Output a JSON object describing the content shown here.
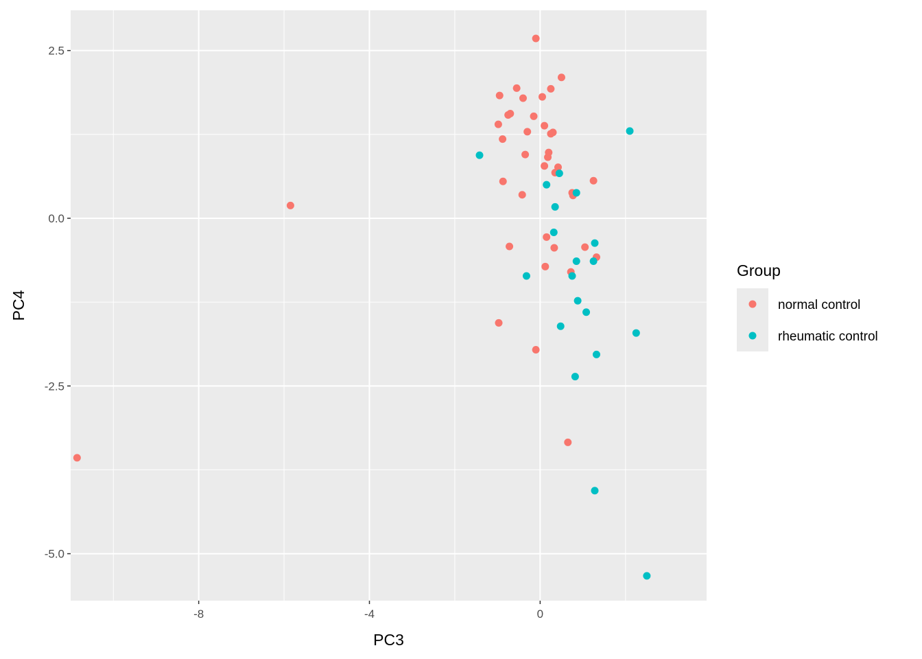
{
  "chart_data": {
    "type": "scatter",
    "xlabel": "PC3",
    "ylabel": "PC4",
    "xlim": [
      -11.0,
      3.9
    ],
    "ylim": [
      -5.7,
      3.1
    ],
    "x_ticks": [
      -8,
      -4,
      0
    ],
    "y_ticks": [
      2.5,
      0.0,
      -2.5,
      -5.0
    ],
    "x_tick_labels": [
      "-8",
      "-4",
      "0"
    ],
    "y_tick_labels": [
      "2.5",
      "0.0",
      "-2.5",
      "-5.0"
    ],
    "grid": true,
    "legend": {
      "title": "Group",
      "placement": "right"
    },
    "colors": {
      "panel_background": "#ebebeb",
      "grid_line": "#ffffff"
    },
    "series": [
      {
        "name": "normal control",
        "color": "#F8766D",
        "points": [
          [
            -0.1,
            2.68
          ],
          [
            0.5,
            2.1
          ],
          [
            -0.55,
            1.94
          ],
          [
            0.25,
            1.93
          ],
          [
            -0.95,
            1.83
          ],
          [
            0.05,
            1.81
          ],
          [
            -0.4,
            1.79
          ],
          [
            -0.7,
            1.56
          ],
          [
            -0.75,
            1.54
          ],
          [
            -0.15,
            1.52
          ],
          [
            -0.98,
            1.4
          ],
          [
            0.1,
            1.38
          ],
          [
            -0.3,
            1.29
          ],
          [
            0.3,
            1.28
          ],
          [
            0.25,
            1.26
          ],
          [
            -0.88,
            1.18
          ],
          [
            0.2,
            0.98
          ],
          [
            -0.35,
            0.95
          ],
          [
            0.18,
            0.91
          ],
          [
            0.1,
            0.78
          ],
          [
            0.42,
            0.76
          ],
          [
            0.35,
            0.68
          ],
          [
            -0.87,
            0.55
          ],
          [
            1.25,
            0.56
          ],
          [
            0.75,
            0.38
          ],
          [
            -0.42,
            0.35
          ],
          [
            0.77,
            0.34
          ],
          [
            -5.85,
            0.19
          ],
          [
            0.15,
            -0.28
          ],
          [
            -0.72,
            -0.42
          ],
          [
            0.33,
            -0.44
          ],
          [
            1.05,
            -0.43
          ],
          [
            1.32,
            -0.58
          ],
          [
            0.12,
            -0.72
          ],
          [
            0.72,
            -0.8
          ],
          [
            -0.97,
            -1.56
          ],
          [
            -0.1,
            -1.96
          ],
          [
            0.65,
            -3.34
          ],
          [
            -10.85,
            -3.57
          ]
        ]
      },
      {
        "name": "rheumatic control",
        "color": "#00BFC4",
        "points": [
          [
            2.1,
            1.3
          ],
          [
            -1.42,
            0.94
          ],
          [
            0.45,
            0.67
          ],
          [
            0.15,
            0.5
          ],
          [
            0.85,
            0.38
          ],
          [
            0.35,
            0.17
          ],
          [
            0.32,
            -0.21
          ],
          [
            1.28,
            -0.37
          ],
          [
            0.85,
            -0.64
          ],
          [
            1.25,
            -0.64
          ],
          [
            -0.32,
            -0.86
          ],
          [
            0.75,
            -0.86
          ],
          [
            0.88,
            -1.23
          ],
          [
            1.08,
            -1.4
          ],
          [
            0.48,
            -1.61
          ],
          [
            2.25,
            -1.71
          ],
          [
            1.32,
            -2.03
          ],
          [
            0.82,
            -2.36
          ],
          [
            1.28,
            -4.06
          ],
          [
            2.5,
            -5.33
          ]
        ]
      }
    ]
  }
}
